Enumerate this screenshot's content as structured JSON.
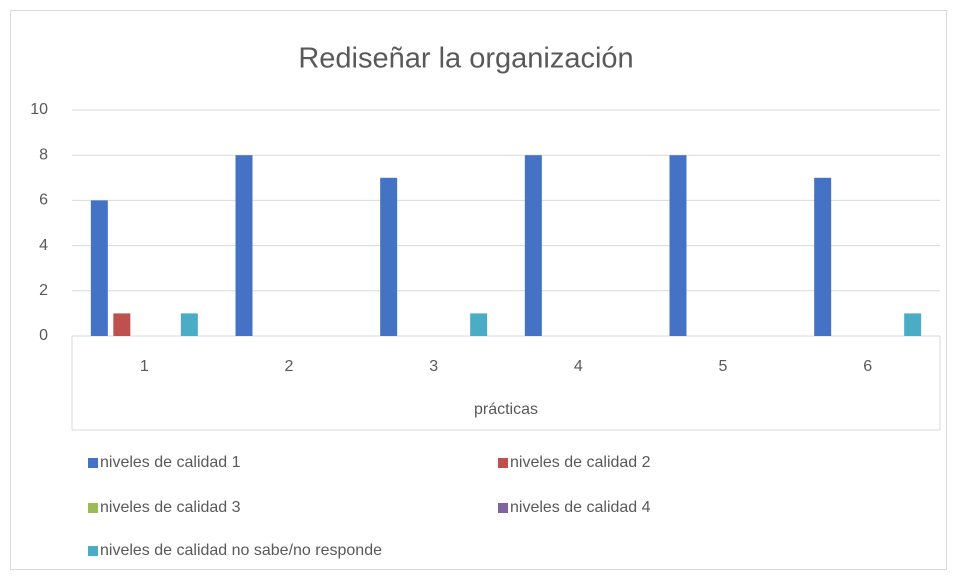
{
  "chart_data": {
    "type": "bar",
    "title": "Rediseñar la organización",
    "x_label": "prácticas",
    "categories": [
      "1",
      "2",
      "3",
      "4",
      "5",
      "6"
    ],
    "series": [
      {
        "name": "niveles de calidad 1",
        "color": "#4472c4",
        "values": [
          6,
          8,
          7,
          8,
          8,
          7
        ]
      },
      {
        "name": "niveles de calidad 2",
        "color": "#c0504d",
        "values": [
          1,
          0,
          0,
          0,
          0,
          0
        ]
      },
      {
        "name": "niveles de calidad 3",
        "color": "#9bbb59",
        "values": [
          0,
          0,
          0,
          0,
          0,
          0
        ]
      },
      {
        "name": "niveles de calidad 4",
        "color": "#8064a2",
        "values": [
          0,
          0,
          0,
          0,
          0,
          0
        ]
      },
      {
        "name": "niveles de calidad no sabe/no responde",
        "color": "#4bacc6",
        "values": [
          1,
          0,
          1,
          0,
          0,
          1
        ]
      }
    ],
    "ylim": [
      0,
      10
    ],
    "yticks": [
      0,
      2,
      4,
      6,
      8,
      10
    ],
    "grid": true,
    "legend": "bottom"
  }
}
